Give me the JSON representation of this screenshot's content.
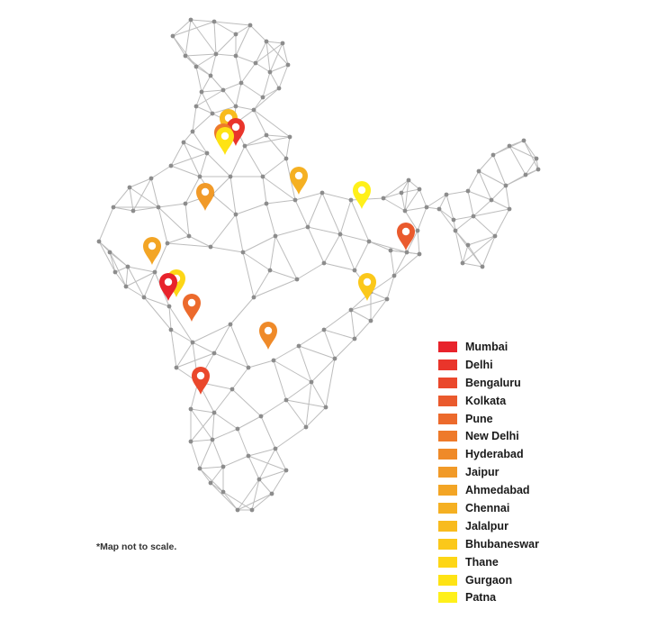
{
  "note": "*Map not to scale.",
  "legend": [
    {
      "city": "Mumbai",
      "color": "#e8232b"
    },
    {
      "city": "Delhi",
      "color": "#e9352b"
    },
    {
      "city": "Bengaluru",
      "color": "#ea482c"
    },
    {
      "city": "Kolkata",
      "color": "#ea5a2d"
    },
    {
      "city": "Pune",
      "color": "#ec6a2c"
    },
    {
      "city": "New Delhi",
      "color": "#ee7a2a"
    },
    {
      "city": "Hyderabad",
      "color": "#ef8a29"
    },
    {
      "city": "Jaipur",
      "color": "#f19a28"
    },
    {
      "city": "Ahmedabad",
      "color": "#f3a525"
    },
    {
      "city": "Chennai",
      "color": "#f5b022"
    },
    {
      "city": "Jalalpur",
      "color": "#f8bb1e"
    },
    {
      "city": "Bhubaneswar",
      "color": "#fbc81a"
    },
    {
      "city": "Thane",
      "color": "#fdd616"
    },
    {
      "city": "Gurgaon",
      "color": "#fee314"
    },
    {
      "city": "Patna",
      "color": "#fff01a"
    }
  ],
  "markers": [
    {
      "city": "Jalalpur",
      "color": "#f8bb1e"
    },
    {
      "city": "Delhi",
      "color": "#e9352b"
    },
    {
      "city": "New Delhi",
      "color": "#ee7a2a"
    },
    {
      "city": "Gurgaon",
      "color": "#fee314"
    },
    {
      "city": "Jaipur",
      "color": "#f19a28"
    },
    {
      "city": "Chennai",
      "color": "#f5b022"
    },
    {
      "city": "Patna",
      "color": "#fff01a"
    },
    {
      "city": "Kolkata",
      "color": "#ea5a2d"
    },
    {
      "city": "Ahmedabad",
      "color": "#f3a525"
    },
    {
      "city": "Thane",
      "color": "#fdd616"
    },
    {
      "city": "Mumbai",
      "color": "#e8232b"
    },
    {
      "city": "Pune",
      "color": "#ec6a2c"
    },
    {
      "city": "Bhubaneswar",
      "color": "#fbc81a"
    },
    {
      "city": "Hyderabad",
      "color": "#ef8a29"
    },
    {
      "city": "Bengaluru",
      "color": "#ea482c"
    }
  ],
  "network": {
    "node_color": "#8c8c8c",
    "edge_color": "#bdbdbd"
  }
}
